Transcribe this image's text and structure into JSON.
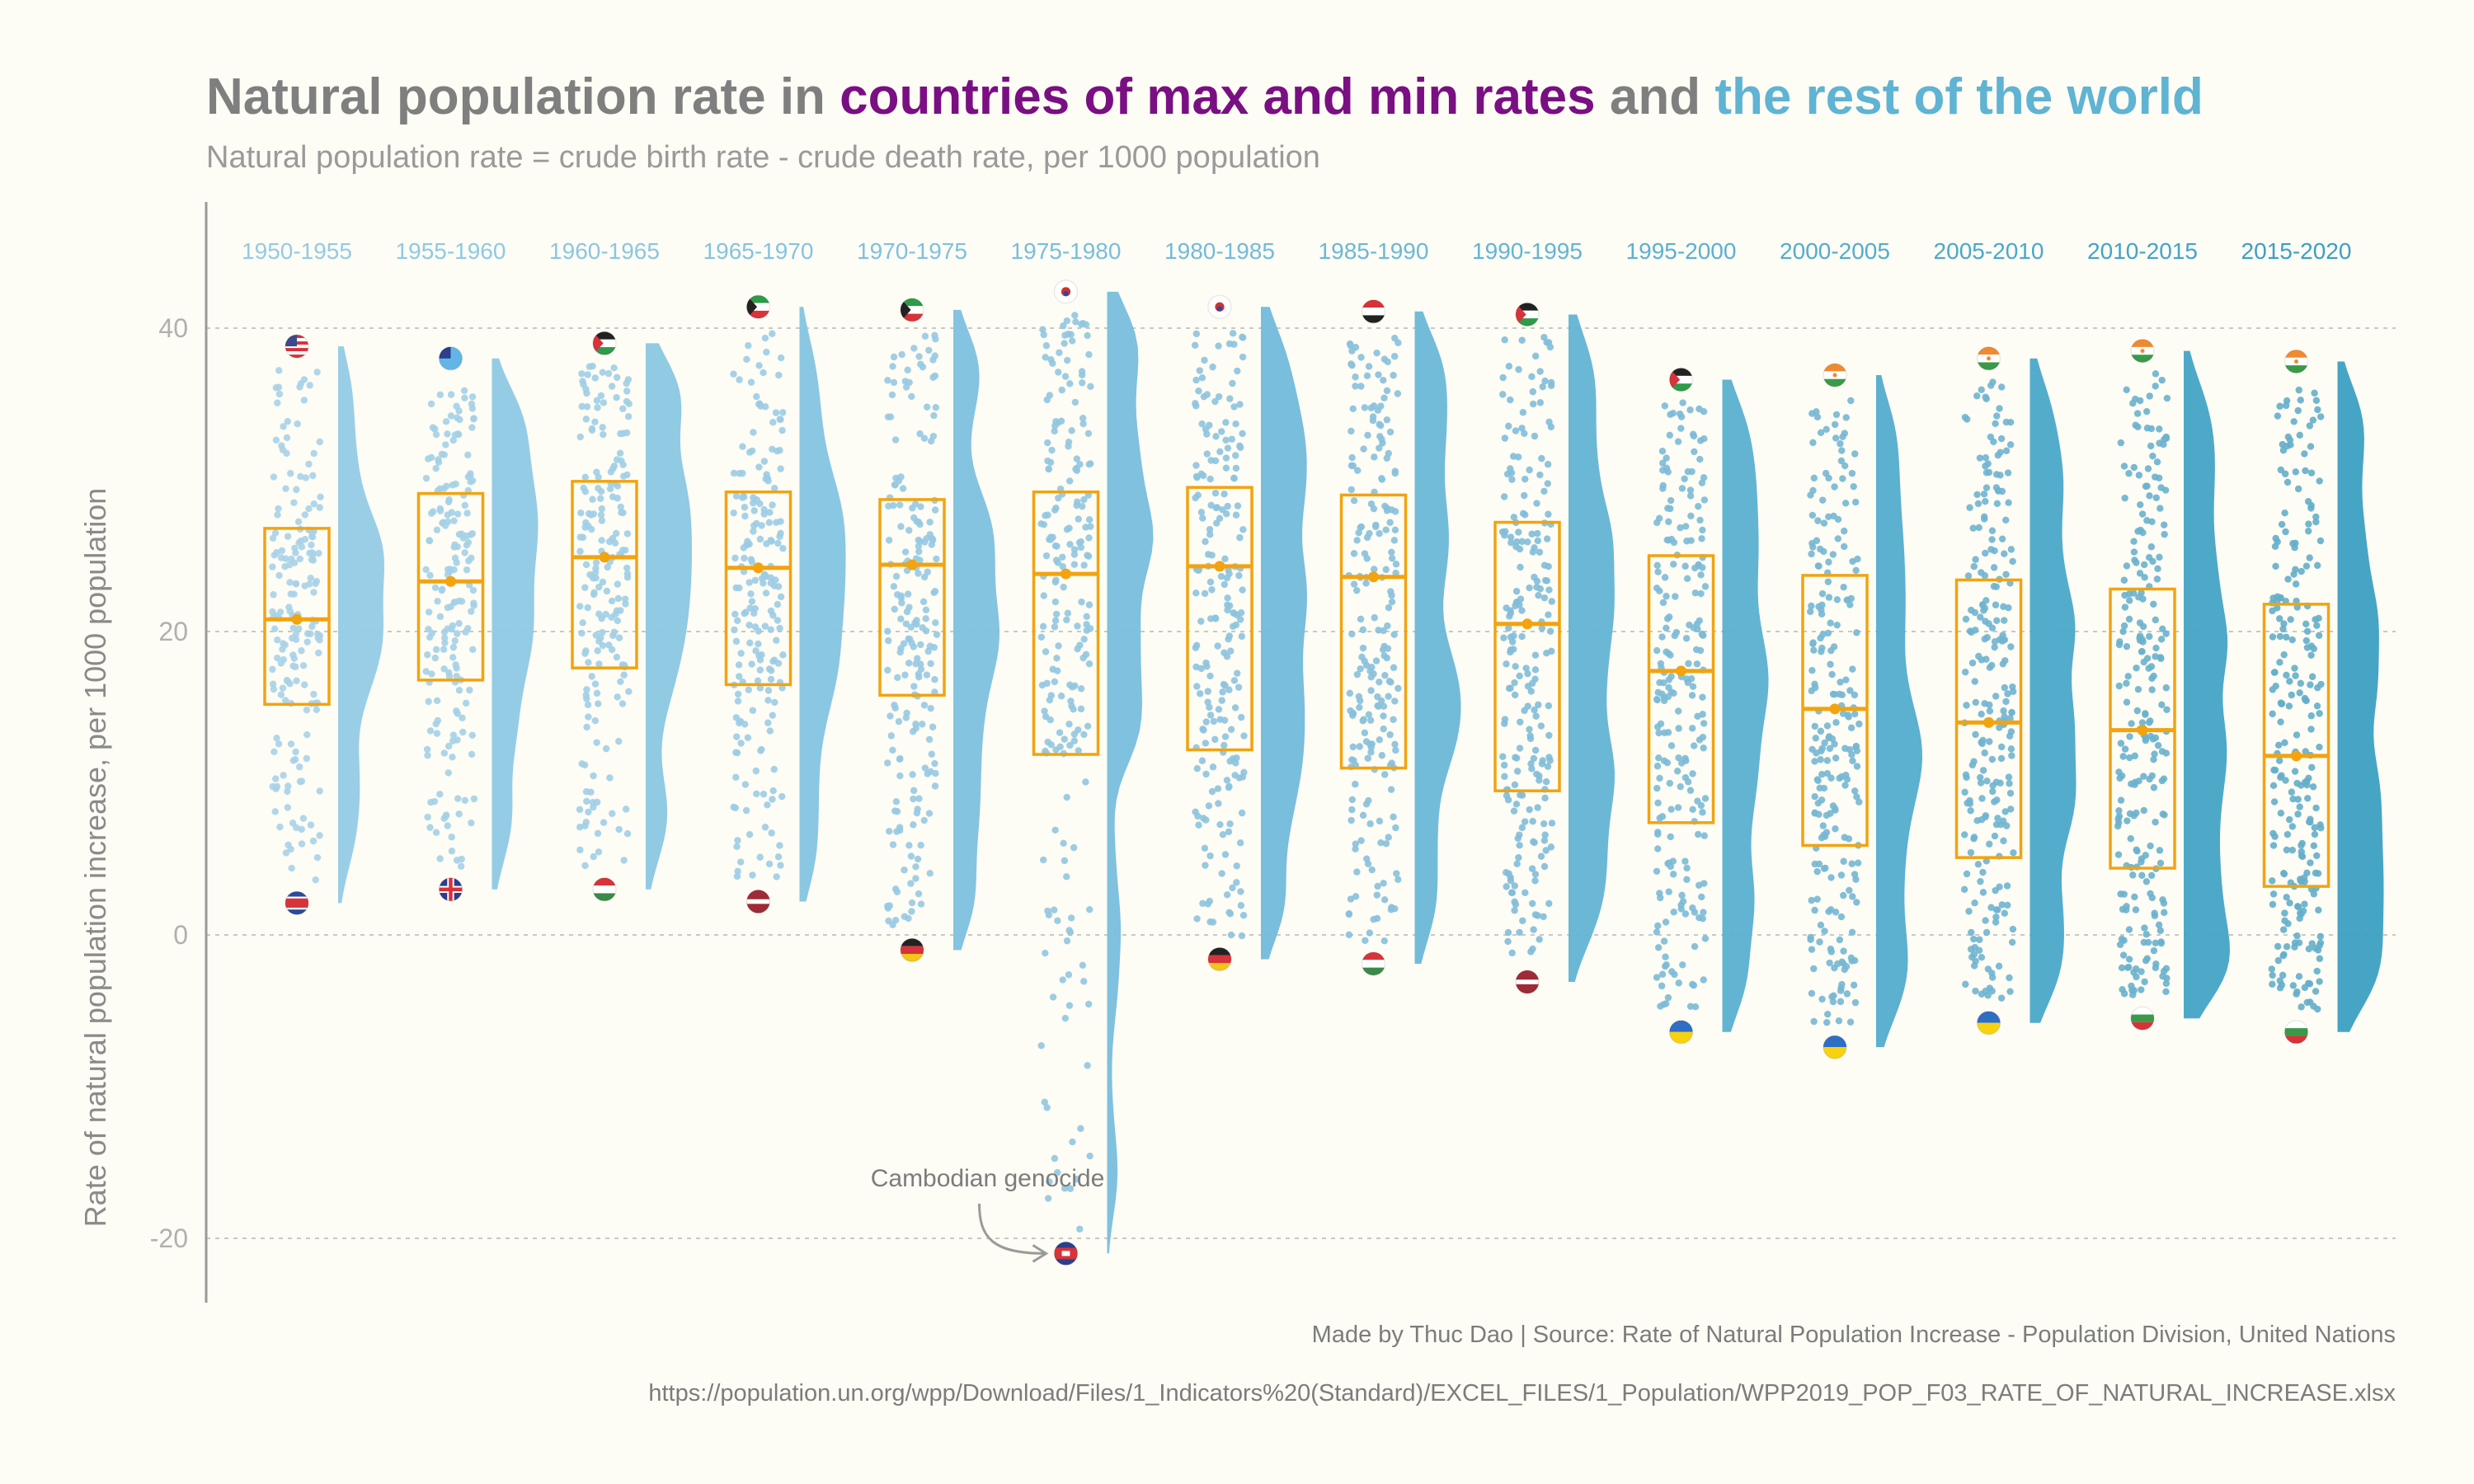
{
  "header": {
    "title_part1": "Natural population rate in ",
    "title_part2": "countries of max and min rates",
    "title_part3": " and ",
    "title_part4": "the rest of the world",
    "subtitle": "Natural population rate = crude birth rate - crude death rate, per 1000 population"
  },
  "colors": {
    "title_gray": "#7f7f7f",
    "title_purple": "#7a0f83",
    "title_blue": "#5fb3d3",
    "box": "#f2a30f",
    "dots": "#7ec4dd",
    "grid": "#c8c8c8",
    "axis": "#9a9a9a"
  },
  "footer": {
    "credit": "Made by Thuc Dao | Source: Rate of Natural Population Increase - Population Division, United Nations",
    "url": "https://population.un.org/wpp/Download/Files/1_Indicators%20(Standard)/EXCEL_FILES/1_Population/WPP2019_POP_F03_RATE_OF_NATURAL_INCREASE.xlsx"
  },
  "chart_data": {
    "type": "raincloud",
    "title": "Natural population rate in countries of max and min rates and the rest of the world",
    "subtitle": "Natural population rate = crude birth rate - crude death rate, per 1000 population",
    "ylabel": "Rate of natural population increase, per 1000 population",
    "xlabel": "",
    "ylim": [
      -24,
      48
    ],
    "yticks": [
      -20,
      0,
      20,
      40
    ],
    "grid": true,
    "annotation": {
      "text": "Cambodian genocide",
      "period": "1975-1980",
      "value": -21
    },
    "periods": [
      {
        "label": "1950-1955",
        "q1": 15.2,
        "median": 20.8,
        "q3": 26.8,
        "min": 2.1,
        "max": 38.8,
        "max_flag": "stars-and-stripes-flag-icon",
        "min_flag": "north-korea-flag-icon",
        "dot_color": "#a8d2e8",
        "violin_color": "#93cbe5"
      },
      {
        "label": "1955-1960",
        "q1": 16.8,
        "median": 23.3,
        "q3": 29.1,
        "min": 3.0,
        "max": 38.0,
        "max_flag": "fiji-flag-icon",
        "min_flag": "union-jack-flag-icon",
        "dot_color": "#a4d0e7",
        "violin_color": "#8fc9e4"
      },
      {
        "label": "1960-1965",
        "q1": 17.6,
        "median": 24.9,
        "q3": 29.9,
        "min": 3.0,
        "max": 39.0,
        "max_flag": "jordan-flag-icon",
        "min_flag": "hungary-flag-icon",
        "dot_color": "#a0cee6",
        "violin_color": "#8ac7e2"
      },
      {
        "label": "1965-1970",
        "q1": 16.5,
        "median": 24.2,
        "q3": 29.2,
        "min": 2.2,
        "max": 41.4,
        "max_flag": "kuwait-flag-icon",
        "min_flag": "latvia-flag-icon",
        "dot_color": "#9ccce4",
        "violin_color": "#84c4e0"
      },
      {
        "label": "1970-1975",
        "q1": 15.8,
        "median": 24.4,
        "q3": 28.7,
        "min": -1.0,
        "max": 41.2,
        "max_flag": "kuwait-flag-icon",
        "min_flag": "germany-flag-icon",
        "dot_color": "#97c9e2",
        "violin_color": "#7ec1de"
      },
      {
        "label": "1975-1980",
        "q1": 11.9,
        "median": 23.8,
        "q3": 29.2,
        "min": -21.0,
        "max": 42.4,
        "max_flag": "south-korea-flag-icon",
        "min_flag": "cambodia-flag-icon",
        "dot_color": "#92c6e0",
        "violin_color": "#78bedc"
      },
      {
        "label": "1980-1985",
        "q1": 12.2,
        "median": 24.3,
        "q3": 29.5,
        "min": -1.6,
        "max": 41.4,
        "max_flag": "south-korea-flag-icon",
        "min_flag": "germany-flag-icon",
        "dot_color": "#8dc3de",
        "violin_color": "#72bbda"
      },
      {
        "label": "1985-1990",
        "q1": 11.0,
        "median": 23.6,
        "q3": 29.0,
        "min": -1.9,
        "max": 41.1,
        "max_flag": "yemen-flag-icon",
        "min_flag": "hungary-flag-icon",
        "dot_color": "#88c0dc",
        "violin_color": "#6bb8d7"
      },
      {
        "label": "1990-1995",
        "q1": 9.5,
        "median": 20.5,
        "q3": 27.2,
        "min": -3.1,
        "max": 40.9,
        "max_flag": "palestine-flag-icon",
        "min_flag": "latvia-flag-icon",
        "dot_color": "#82bdd9",
        "violin_color": "#63b4d4"
      },
      {
        "label": "1995-2000",
        "q1": 7.4,
        "median": 17.4,
        "q3": 25.0,
        "min": -6.4,
        "max": 36.6,
        "max_flag": "palestine-flag-icon",
        "min_flag": "ukraine-flag-icon",
        "dot_color": "#7cbad6",
        "violin_color": "#5bb0d1"
      },
      {
        "label": "2000-2005",
        "q1": 5.9,
        "median": 14.9,
        "q3": 23.7,
        "min": -7.4,
        "max": 36.9,
        "max_flag": "niger-flag-icon",
        "min_flag": "ukraine-flag-icon",
        "dot_color": "#76b7d3",
        "violin_color": "#53accd"
      },
      {
        "label": "2005-2010",
        "q1": 5.1,
        "median": 14.0,
        "q3": 23.4,
        "min": -5.8,
        "max": 38.0,
        "max_flag": "niger-flag-icon",
        "min_flag": "ukraine-flag-icon",
        "dot_color": "#70b4d0",
        "violin_color": "#4ba8ca"
      },
      {
        "label": "2010-2015",
        "q1": 4.4,
        "median": 13.5,
        "q3": 22.8,
        "min": -5.5,
        "max": 38.5,
        "max_flag": "niger-flag-icon",
        "min_flag": "bulgaria-flag-icon",
        "dot_color": "#6ab1cd",
        "violin_color": "#44a4c6"
      },
      {
        "label": "2015-2020",
        "q1": 3.2,
        "median": 11.8,
        "q3": 21.8,
        "min": -6.4,
        "max": 37.8,
        "max_flag": "niger-flag-icon",
        "min_flag": "bulgaria-flag-icon",
        "dot_color": "#64aeca",
        "violin_color": "#3ca0c2"
      }
    ]
  }
}
